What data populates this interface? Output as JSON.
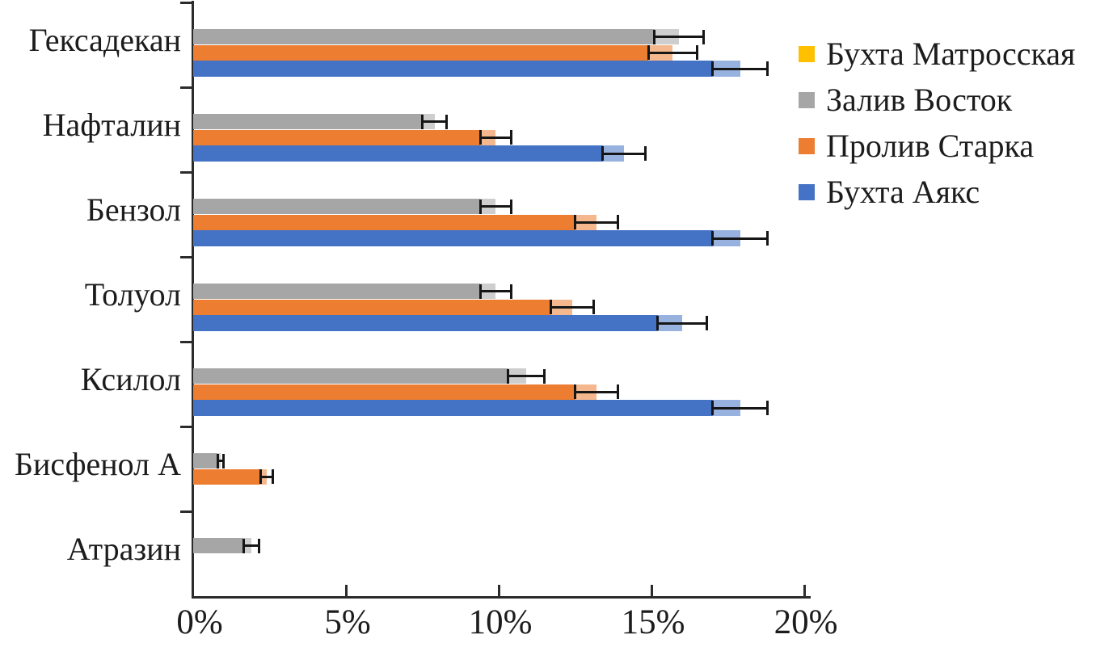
{
  "chart_data": {
    "type": "bar",
    "orientation": "horizontal",
    "title": "",
    "xlabel": "",
    "ylabel": "",
    "xlim": [
      0,
      20
    ],
    "x_tick_labels": [
      "0%",
      "5%",
      "10%",
      "15%",
      "20%"
    ],
    "x_tick_values": [
      0,
      5,
      10,
      15,
      20
    ],
    "grid": false,
    "legend_position": "right-top",
    "error_bars": true,
    "categories": [
      "Гексадекан",
      "Нафталин",
      "Бензол",
      "Толуол",
      "Ксилол",
      "Бисфенол А",
      "Атразин"
    ],
    "series": [
      {
        "name": "Бухта Матросская",
        "color": "#FFC000",
        "values": [
          0,
          0,
          0,
          0,
          0,
          0,
          0
        ],
        "errors": [
          0,
          0,
          0,
          0,
          0,
          0,
          0
        ]
      },
      {
        "name": "Залив Восток",
        "color": "#A6A6A6",
        "values": [
          15.9,
          7.9,
          9.9,
          9.9,
          10.9,
          0.9,
          1.9
        ],
        "errors": [
          0.8,
          0.4,
          0.5,
          0.5,
          0.6,
          0.1,
          0.25
        ]
      },
      {
        "name": "Пролив Старка",
        "color": "#ED7D31",
        "values": [
          15.7,
          9.9,
          13.2,
          12.4,
          13.2,
          2.4,
          0
        ],
        "errors": [
          0.8,
          0.5,
          0.7,
          0.7,
          0.7,
          0.2,
          0
        ]
      },
      {
        "name": "Бухта Аякс",
        "color": "#4472C4",
        "values": [
          17.9,
          14.1,
          17.9,
          16.0,
          17.9,
          0,
          0
        ],
        "errors": [
          0.9,
          0.7,
          0.9,
          0.8,
          0.9,
          0,
          0
        ]
      }
    ],
    "axis_color": "#2b2b2b",
    "error_bar_color": "#161616"
  }
}
